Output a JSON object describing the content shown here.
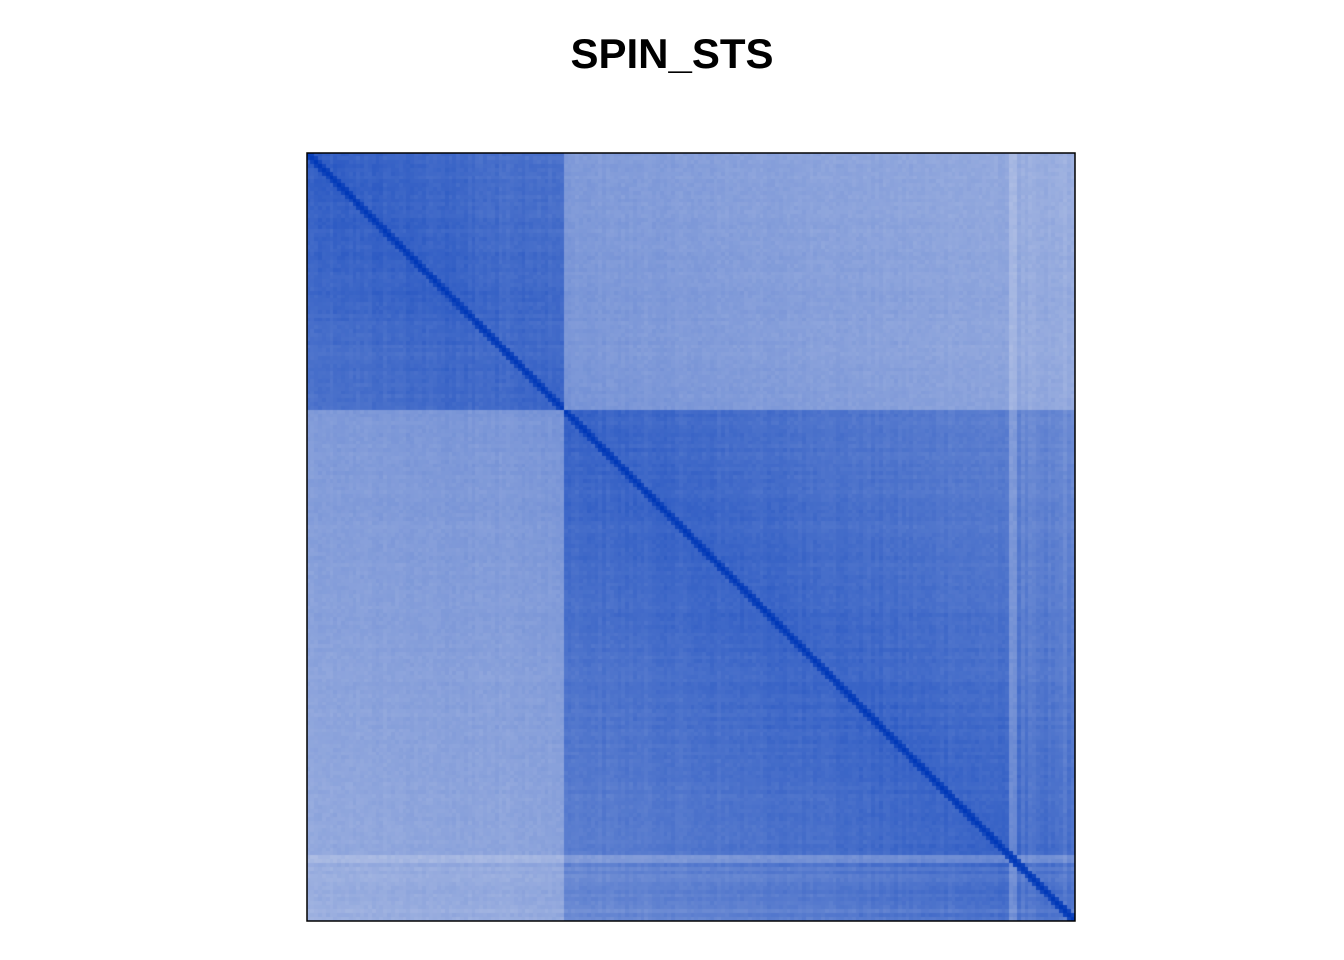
{
  "chart_data": {
    "type": "heatmap",
    "title": "SPIN_STS",
    "xlabel": "",
    "ylabel": "",
    "grid": false,
    "legend": "none",
    "colors": {
      "high": "#0038b8",
      "low": "#f0f0f5",
      "border": "#000000"
    },
    "blocks": [
      {
        "start": 0,
        "end": 0.335,
        "within_similarity": 0.82
      },
      {
        "start": 0.335,
        "end": 1.0,
        "within_similarity": 0.8
      }
    ],
    "between_block_similarity": 0.48,
    "diagonal_similarity": 1.0,
    "matrix_size": 200
  }
}
